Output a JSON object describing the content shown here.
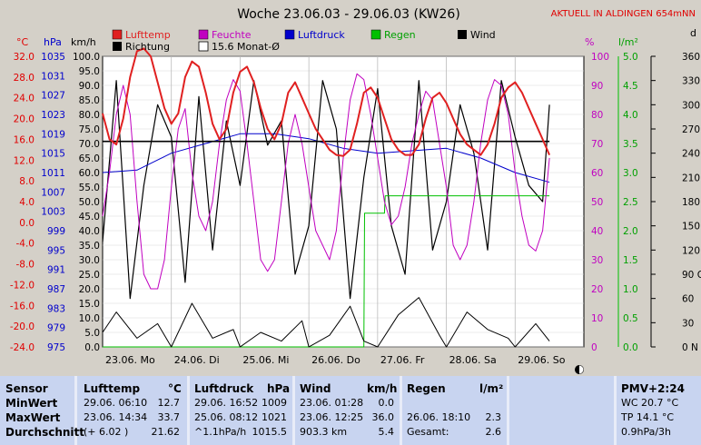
{
  "title": "Woche 23.06.03 - 29.06.03 (KW26)",
  "location": "AKTUELL IN ALDINGEN 654mNN",
  "legend": {
    "lufttemp": "Lufttemp",
    "feuchte": "Feuchte",
    "luftdruck": "Luftdruck",
    "regen": "Regen",
    "wind": "Wind",
    "richtung": "Richtung",
    "monat": "15.6 Monat-Ø"
  },
  "colors": {
    "temp": "#e02020",
    "humidity": "#c000c0",
    "pressure": "#0000cc",
    "rain": "#00c000",
    "wind": "#000000",
    "direction": "#000000",
    "plot_bg": "#ffffff"
  },
  "axis_units": {
    "temp": "°C",
    "pressure": "hPa",
    "wind": "km/h",
    "humidity": "%",
    "rain": "l/m²",
    "direction": "d"
  },
  "chart_data": {
    "type": "line",
    "title": "Woche 23.06.03 - 29.06.03 (KW26)",
    "x_labels": [
      "23.06. Mo",
      "24.06. Di",
      "25.06. Mi",
      "26.06. Do",
      "27.06. Fr",
      "28.06. Sa",
      "29.06. So"
    ],
    "axes": {
      "temp": {
        "ticks": [
          "32.0",
          "28.0",
          "24.0",
          "20.0",
          "16.0",
          "12.0",
          "8.0",
          "4.0",
          "0.0",
          "-4.0",
          "-8.0",
          "-12.0",
          "-16.0",
          "-20.0",
          "-24.0"
        ],
        "range": [
          -24,
          32
        ]
      },
      "pressure": {
        "ticks": [
          "1035",
          "1031",
          "1027",
          "1023",
          "1019",
          "1015",
          "1011",
          "1007",
          "1003",
          "999",
          "995",
          "991",
          "987",
          "983",
          "979",
          "975"
        ],
        "range": [
          975,
          1035
        ]
      },
      "wind": {
        "ticks": [
          "100.0",
          "95.0",
          "90.0",
          "85.0",
          "80.0",
          "75.0",
          "70.0",
          "65.0",
          "60.0",
          "55.0",
          "50.0",
          "45.0",
          "40.0",
          "35.0",
          "30.0",
          "25.0",
          "20.0",
          "15.0",
          "10.0",
          "5.0",
          "0.0"
        ],
        "range": [
          0,
          100
        ]
      },
      "humidity": {
        "ticks": [
          "100",
          "90",
          "80",
          "70",
          "60",
          "50",
          "40",
          "30",
          "20",
          "10",
          "0"
        ],
        "range": [
          0,
          100
        ]
      },
      "rain": {
        "ticks": [
          "5.0",
          "4.5",
          "4.0",
          "3.5",
          "3.0",
          "2.5",
          "2.0",
          "1.5",
          "1.0",
          "0.5",
          "0.0"
        ],
        "range": [
          0,
          5
        ]
      },
      "direction": {
        "ticks": [
          "360 N",
          "330",
          "300",
          "270 W",
          "240",
          "210",
          "180 S",
          "150",
          "120",
          "90 O",
          "60",
          "30",
          "0 N"
        ],
        "range": [
          0,
          360
        ]
      }
    },
    "series": [
      {
        "name": "Lufttemp",
        "axis": "temp",
        "x": [
          0,
          0.1,
          0.2,
          0.3,
          0.4,
          0.5,
          0.6,
          0.7,
          0.8,
          0.9,
          1.0,
          1.1,
          1.2,
          1.3,
          1.4,
          1.5,
          1.6,
          1.7,
          1.8,
          1.9,
          2.0,
          2.1,
          2.2,
          2.3,
          2.4,
          2.5,
          2.6,
          2.7,
          2.8,
          2.9,
          3.0,
          3.1,
          3.2,
          3.3,
          3.4,
          3.5,
          3.6,
          3.7,
          3.8,
          3.9,
          4.0,
          4.1,
          4.2,
          4.3,
          4.4,
          4.5,
          4.6,
          4.7,
          4.8,
          4.9,
          5.0,
          5.1,
          5.2,
          5.3,
          5.4,
          5.5,
          5.6,
          5.7,
          5.8,
          5.9,
          6.0,
          6.1,
          6.2,
          6.3,
          6.4,
          6.5
        ],
        "y": [
          21,
          16,
          15,
          20,
          28,
          33,
          33.5,
          32,
          27,
          22,
          19,
          21,
          28,
          31,
          30,
          25,
          19,
          16,
          18,
          25,
          29,
          30,
          27,
          22,
          18,
          16,
          19,
          25,
          27,
          24,
          21,
          18,
          16,
          14,
          13,
          12.8,
          14,
          19,
          25,
          26,
          24,
          20,
          16,
          14,
          13,
          13,
          15,
          20,
          24,
          25,
          23,
          20,
          17,
          15,
          14,
          13,
          15,
          19,
          24,
          26,
          27,
          25,
          22,
          19,
          16,
          13
        ]
      },
      {
        "name": "Feuchte",
        "axis": "humidity",
        "x": [
          0,
          0.1,
          0.2,
          0.3,
          0.4,
          0.5,
          0.6,
          0.7,
          0.8,
          0.9,
          1.0,
          1.1,
          1.2,
          1.3,
          1.4,
          1.5,
          1.6,
          1.7,
          1.8,
          1.9,
          2.0,
          2.1,
          2.2,
          2.3,
          2.4,
          2.5,
          2.6,
          2.7,
          2.8,
          2.9,
          3.0,
          3.1,
          3.2,
          3.3,
          3.4,
          3.5,
          3.6,
          3.7,
          3.8,
          3.9,
          4.0,
          4.1,
          4.2,
          4.3,
          4.4,
          4.5,
          4.6,
          4.7,
          4.8,
          4.9,
          5.0,
          5.1,
          5.2,
          5.3,
          5.4,
          5.5,
          5.6,
          5.7,
          5.8,
          5.9,
          6.0,
          6.1,
          6.2,
          6.3,
          6.4,
          6.5
        ],
        "y": [
          45,
          60,
          80,
          90,
          80,
          50,
          25,
          20,
          20,
          30,
          55,
          75,
          82,
          60,
          45,
          40,
          50,
          70,
          85,
          92,
          88,
          70,
          50,
          30,
          26,
          30,
          50,
          70,
          80,
          70,
          55,
          40,
          35,
          30,
          40,
          65,
          85,
          94,
          92,
          80,
          65,
          50,
          42,
          45,
          55,
          70,
          80,
          88,
          85,
          70,
          55,
          35,
          30,
          35,
          50,
          70,
          85,
          92,
          90,
          80,
          60,
          45,
          35,
          33,
          40,
          65
        ]
      },
      {
        "name": "Luftdruck",
        "axis": "pressure",
        "x": [
          0,
          0.5,
          1.0,
          1.5,
          2.0,
          2.5,
          3.0,
          3.5,
          4.0,
          4.5,
          5.0,
          5.5,
          6.0,
          6.5
        ],
        "y": [
          1011,
          1011.5,
          1015,
          1017,
          1019,
          1019,
          1018,
          1016,
          1015,
          1015.5,
          1016,
          1014,
          1011,
          1009
        ]
      },
      {
        "name": "Regen",
        "axis": "rain",
        "x": [
          0,
          3.8,
          3.81,
          4.1,
          4.11,
          6.5
        ],
        "y": [
          0,
          0,
          2.3,
          2.3,
          2.6,
          2.6
        ]
      },
      {
        "name": "Wind",
        "axis": "wind",
        "x": [
          0,
          0.2,
          0.5,
          0.8,
          1.0,
          1.3,
          1.6,
          1.9,
          2.0,
          2.3,
          2.6,
          2.9,
          3.0,
          3.3,
          3.6,
          3.8,
          4.0,
          4.3,
          4.6,
          4.9,
          5.0,
          5.3,
          5.6,
          5.9,
          6.0,
          6.3,
          6.5
        ],
        "y": [
          5,
          12,
          3,
          8,
          0,
          15,
          3,
          6,
          0,
          5,
          2,
          9,
          0,
          4,
          14,
          2,
          0,
          11,
          17,
          4,
          0,
          12,
          6,
          3,
          0,
          8,
          2
        ]
      },
      {
        "name": "Richtung",
        "axis": "direction",
        "x": [
          0,
          0.2,
          0.4,
          0.6,
          0.8,
          1.0,
          1.2,
          1.4,
          1.6,
          1.8,
          2.0,
          2.2,
          2.4,
          2.6,
          2.8,
          3.0,
          3.2,
          3.4,
          3.6,
          3.8,
          4.0,
          4.2,
          4.4,
          4.6,
          4.8,
          5.0,
          5.2,
          5.4,
          5.6,
          5.8,
          6.0,
          6.2,
          6.4,
          6.5
        ],
        "y": [
          130,
          330,
          60,
          200,
          300,
          260,
          80,
          310,
          120,
          280,
          200,
          330,
          250,
          280,
          90,
          150,
          330,
          270,
          60,
          210,
          320,
          150,
          90,
          330,
          120,
          180,
          300,
          240,
          120,
          330,
          260,
          200,
          180,
          300
        ]
      },
      {
        "name": "15.6 Monat-Ø",
        "axis": "temp",
        "x": [
          0,
          6.5
        ],
        "y": [
          15.6,
          15.6
        ]
      }
    ]
  },
  "table": {
    "sensor": {
      "head": "Sensor",
      "rows": [
        "MinWert",
        "MaxWert",
        "Durchschnitt"
      ]
    },
    "lufttemp": {
      "head": "Lufttemp",
      "unit": "°C",
      "rows": [
        [
          "29.06.  06:10",
          "12.7"
        ],
        [
          "23.06.  14:34",
          "33.7"
        ],
        [
          "(+ 6.02 )",
          "21.62"
        ]
      ]
    },
    "luftdruck": {
      "head": "Luftdruck",
      "unit": "hPa",
      "rows": [
        [
          "29.06.  16:52",
          "1009"
        ],
        [
          "25.06.  08:12",
          "1021"
        ],
        [
          "^1.1hPa/h",
          "1015.5"
        ]
      ]
    },
    "wind": {
      "head": "Wind",
      "unit": "km/h",
      "rows": [
        [
          "23.06.  01:28",
          "0.0"
        ],
        [
          "23.06.  12:25",
          "36.0"
        ],
        [
          "903.3 km",
          "5.4"
        ]
      ]
    },
    "regen": {
      "head": "Regen",
      "unit": "l/m²",
      "rows": [
        [
          "26.06.  18:10",
          "2.3"
        ],
        [
          "Gesamt:",
          "2.6"
        ]
      ]
    },
    "pmv": {
      "head": "PMV+2:24",
      "rows": [
        "WC 20.7 °C",
        "TP 14.1 °C",
        "0.9hPa/3h"
      ]
    }
  }
}
